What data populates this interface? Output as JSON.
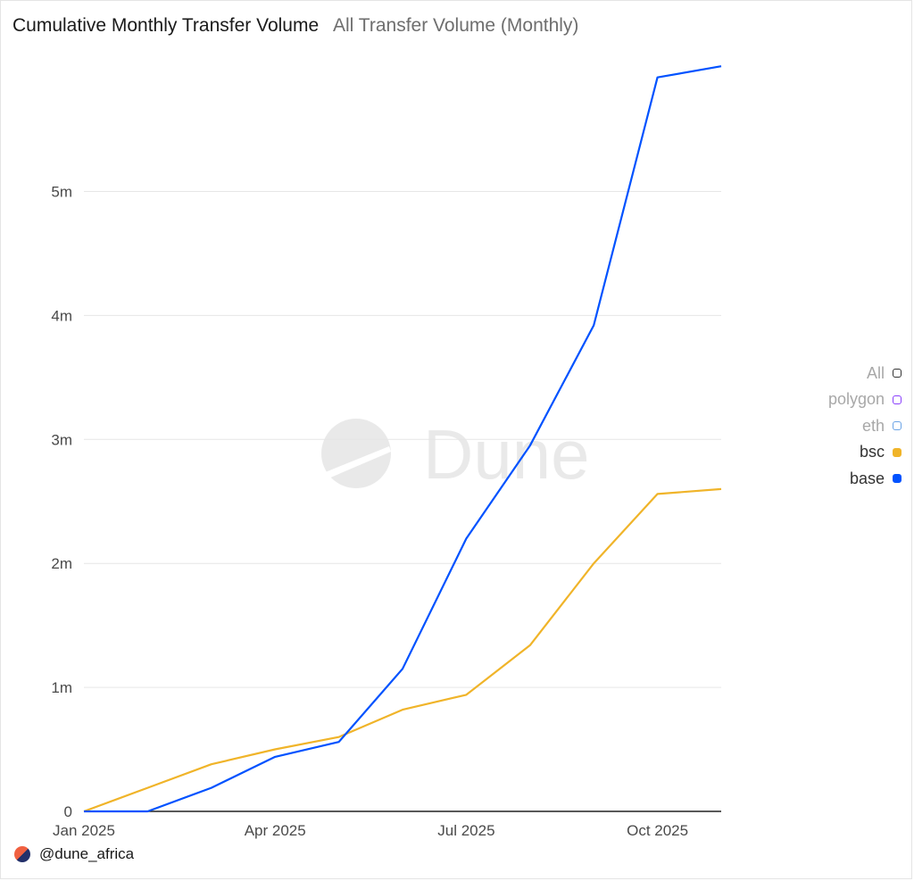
{
  "header": {
    "title": "Cumulative Monthly Transfer Volume",
    "subtitle": "All Transfer Volume (Monthly)"
  },
  "watermark": {
    "text": "Dune"
  },
  "footer": {
    "handle": "@dune_africa"
  },
  "legend": {
    "items": [
      {
        "label": "All",
        "color": "#333333",
        "active": false
      },
      {
        "label": "polygon",
        "color": "#8a3ffc",
        "active": false
      },
      {
        "label": "eth",
        "color": "#6aa3e6",
        "active": false
      },
      {
        "label": "bsc",
        "color": "#f0b429",
        "active": true
      },
      {
        "label": "base",
        "color": "#0052ff",
        "active": true
      }
    ]
  },
  "chart_data": {
    "type": "line",
    "x_ticks": [
      "Jan 2025",
      "Apr 2025",
      "Jul 2025",
      "Oct 2025"
    ],
    "y_ticks": [
      "0",
      "1m",
      "2m",
      "3m",
      "4m",
      "5m"
    ],
    "ylim": [
      0,
      6000000
    ],
    "grid": true,
    "legend_position": "right",
    "x": [
      "2025-01",
      "2025-02",
      "2025-03",
      "2025-04",
      "2025-05",
      "2025-06",
      "2025-07",
      "2025-08",
      "2025-09",
      "2025-10",
      "2025-11"
    ],
    "series": [
      {
        "name": "bsc",
        "color": "#f0b429",
        "values": [
          0,
          190000,
          380000,
          500000,
          600000,
          820000,
          940000,
          1340000,
          2000000,
          2560000,
          2600000
        ]
      },
      {
        "name": "base",
        "color": "#0052ff",
        "values": [
          0,
          0,
          190000,
          440000,
          560000,
          1150000,
          2200000,
          2950000,
          3920000,
          5920000,
          6010000
        ]
      }
    ]
  }
}
